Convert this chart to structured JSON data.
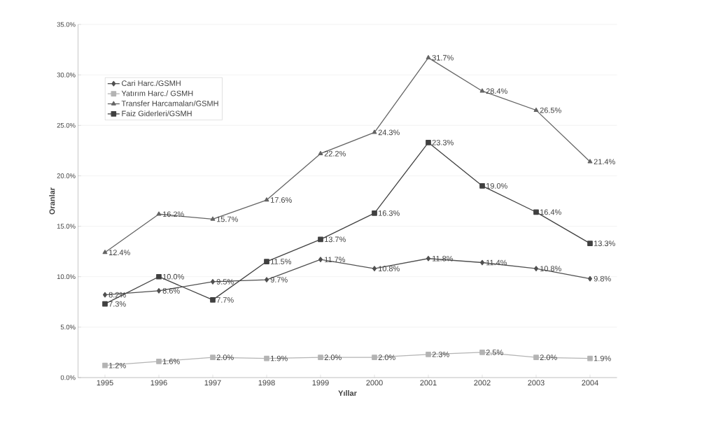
{
  "chart_data": {
    "type": "line",
    "xlabel": "Yıllar",
    "ylabel": "Oranlar",
    "categories": [
      "1995",
      "1996",
      "1997",
      "1998",
      "1999",
      "2000",
      "2001",
      "2002",
      "2003",
      "2004"
    ],
    "ylim": [
      0,
      35
    ],
    "yticks": [
      {
        "value": 0,
        "label": "0.0%"
      },
      {
        "value": 5,
        "label": "5.0%"
      },
      {
        "value": 10,
        "label": "10.0%"
      },
      {
        "value": 15,
        "label": "15.0%"
      },
      {
        "value": 20,
        "label": "20.0%"
      },
      {
        "value": 25,
        "label": "25.0%"
      },
      {
        "value": 30,
        "label": "30.0%"
      },
      {
        "value": 35,
        "label": "35.0%"
      }
    ],
    "grid": "y",
    "legend": "top left",
    "line_style": "solid",
    "series": [
      {
        "name": "Cari Harc./GSMH",
        "color": "#505050",
        "marker": "diamond",
        "values": [
          8.2,
          8.6,
          9.5,
          9.7,
          11.7,
          10.8,
          11.8,
          11.4,
          10.8,
          9.8
        ],
        "value_labels": [
          "8.2%",
          "8.6%",
          "9.5%",
          "9.7%",
          "11.7%",
          "10.8%",
          "11.8%",
          "11.4%",
          "10.8%",
          "9.8%"
        ]
      },
      {
        "name": "Yatırım Harc./ GSMH",
        "color": "#b4b4b4",
        "marker": "square",
        "values": [
          1.2,
          1.6,
          2.0,
          1.9,
          2.0,
          2.0,
          2.3,
          2.5,
          2.0,
          1.9
        ],
        "value_labels": [
          "1.2%",
          "1.6%",
          "2.0%",
          "1.9%",
          "2.0%",
          "2.0%",
          "2.3%",
          "2.5%",
          "2.0%",
          "1.9%"
        ]
      },
      {
        "name": "Transfer Harcamaları/GSMH",
        "color": "#646464",
        "marker": "triangle",
        "values": [
          12.4,
          16.2,
          15.7,
          17.6,
          22.2,
          24.3,
          31.7,
          28.4,
          26.5,
          21.4
        ],
        "value_labels": [
          "12.4%",
          "16.2%",
          "15.7%",
          "17.6%",
          "22.2%",
          "24.3%",
          "31.7%",
          "28.4%",
          "26.5%",
          "21.4%"
        ]
      },
      {
        "name": "Faiz Giderleri/GSMH",
        "color": "#404040",
        "marker": "square",
        "values": [
          7.3,
          10.0,
          7.7,
          11.5,
          13.7,
          16.3,
          23.3,
          19.0,
          16.4,
          13.3
        ],
        "value_labels": [
          "7.3%",
          "10.0%",
          "7.7%",
          "11.5%",
          "13.7%",
          "16.3%",
          "23.3%",
          "19.0%",
          "16.4%",
          "13.3%"
        ]
      }
    ]
  }
}
